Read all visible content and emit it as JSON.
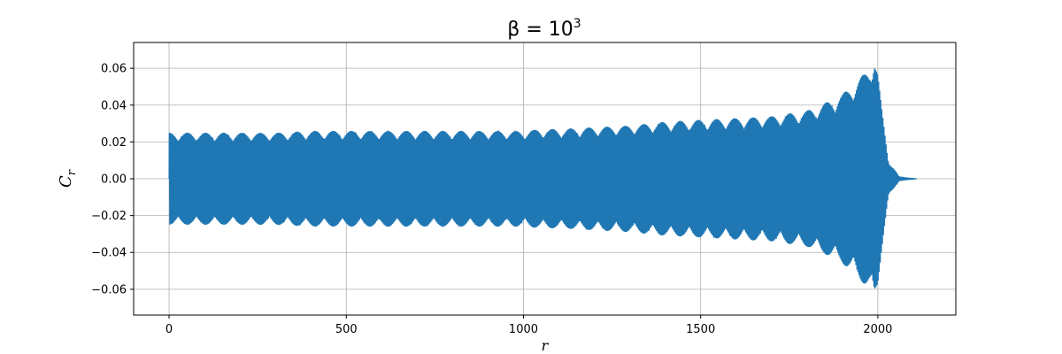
{
  "chart_data": {
    "type": "line",
    "title_base": "β = 10",
    "title_exponent": "3",
    "xlabel": "r",
    "ylabel_base": "C",
    "ylabel_sub": "r",
    "xlim": [
      -100,
      2220
    ],
    "ylim": [
      -0.074,
      0.074
    ],
    "x_ticks": [
      0,
      500,
      1000,
      1500,
      2000
    ],
    "x_tick_labels": [
      "0",
      "500",
      "1000",
      "1500",
      "2000"
    ],
    "y_ticks": [
      -0.06,
      -0.04,
      -0.02,
      0.0,
      0.02,
      0.04,
      0.06
    ],
    "y_tick_labels": [
      "−0.06",
      "−0.04",
      "−0.02",
      "0.00",
      "0.02",
      "0.04",
      "0.06"
    ],
    "grid": true,
    "series": [
      {
        "color": "#1f77b4",
        "x_range": [
          0,
          2110
        ],
        "envelope_x": [
          0,
          100,
          200,
          300,
          400,
          500,
          600,
          700,
          800,
          900,
          950,
          1000,
          1050,
          1100,
          1200,
          1300,
          1400,
          1500,
          1600,
          1700,
          1800,
          1850,
          1900,
          1950,
          1975,
          1990,
          2000,
          2010,
          2030,
          2060,
          2110
        ],
        "envelope_amplitude": [
          0.025,
          0.025,
          0.025,
          0.025,
          0.026,
          0.026,
          0.026,
          0.026,
          0.026,
          0.026,
          0.026,
          0.026,
          0.027,
          0.027,
          0.028,
          0.029,
          0.031,
          0.032,
          0.033,
          0.034,
          0.037,
          0.041,
          0.046,
          0.055,
          0.06,
          0.067,
          0.058,
          0.04,
          0.01,
          0.001,
          0.0
        ]
      }
    ]
  }
}
